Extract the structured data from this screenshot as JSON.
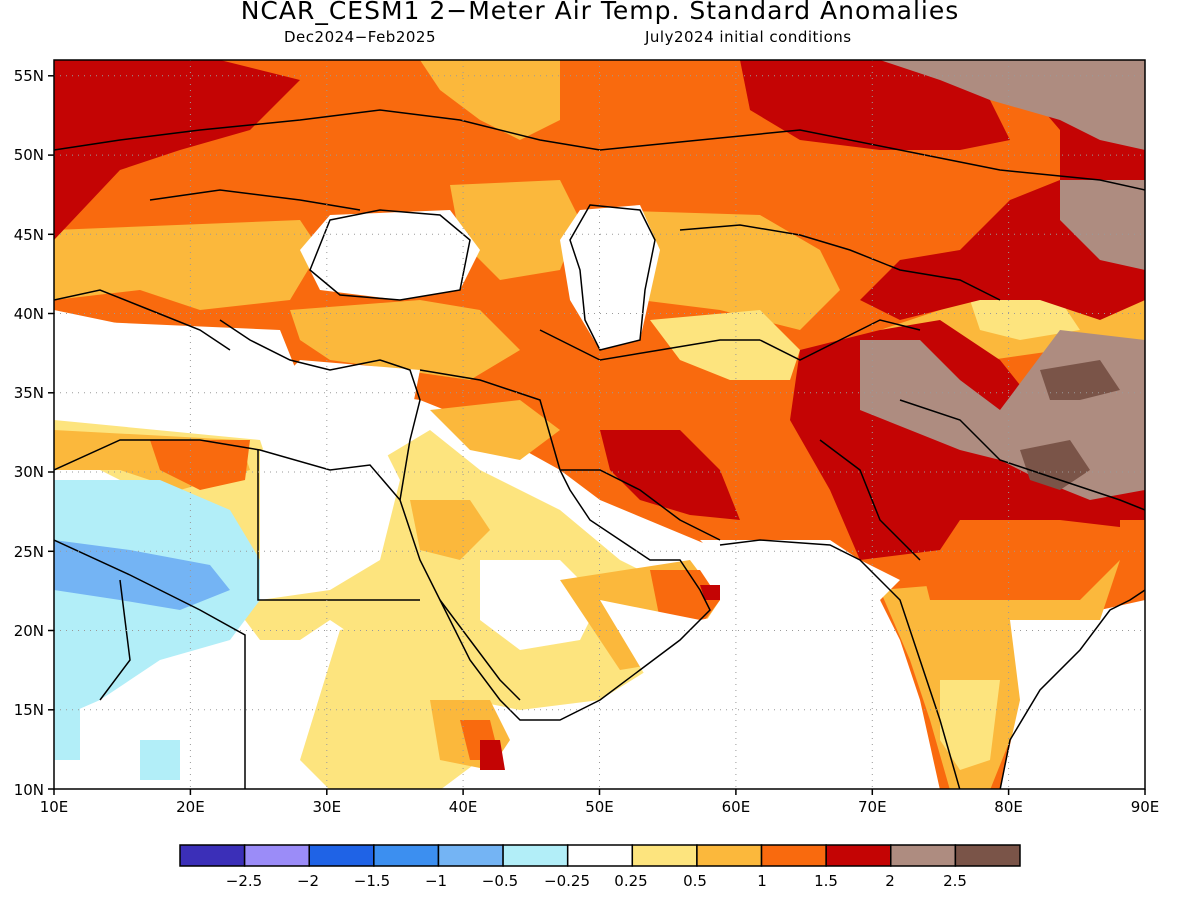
{
  "map": {
    "title": "NCAR_CESM1 2−Meter Air Temp. Standard Anomalies",
    "subtitle_left": "Dec2024−Feb2025",
    "subtitle_right": "July2024 initial conditions",
    "lon_ticks": [
      "10E",
      "20E",
      "30E",
      "40E",
      "50E",
      "60E",
      "70E",
      "80E",
      "90E"
    ],
    "lat_ticks": [
      "55N",
      "50N",
      "45N",
      "40N",
      "35N",
      "30N",
      "25N",
      "20N",
      "15N",
      "10N"
    ],
    "extent": {
      "lon": [
        10,
        90
      ],
      "lat": [
        10,
        56
      ]
    },
    "grid": "dotted"
  },
  "legend": {
    "colors": [
      "#3b2fb8",
      "#9b8cf8",
      "#1f63e6",
      "#3c8ff0",
      "#74b4f4",
      "#b2eef8",
      "#ffffff",
      "#fde47e",
      "#fbb83c",
      "#f96a0e",
      "#c40404",
      "#ae8c80",
      "#7a5448"
    ],
    "labels": [
      "−2.5",
      "−2",
      "−1.5",
      "−1",
      "−0.5",
      "−0.25",
      "0.25",
      "0.5",
      "1",
      "1.5",
      "2",
      "2.5"
    ]
  }
}
